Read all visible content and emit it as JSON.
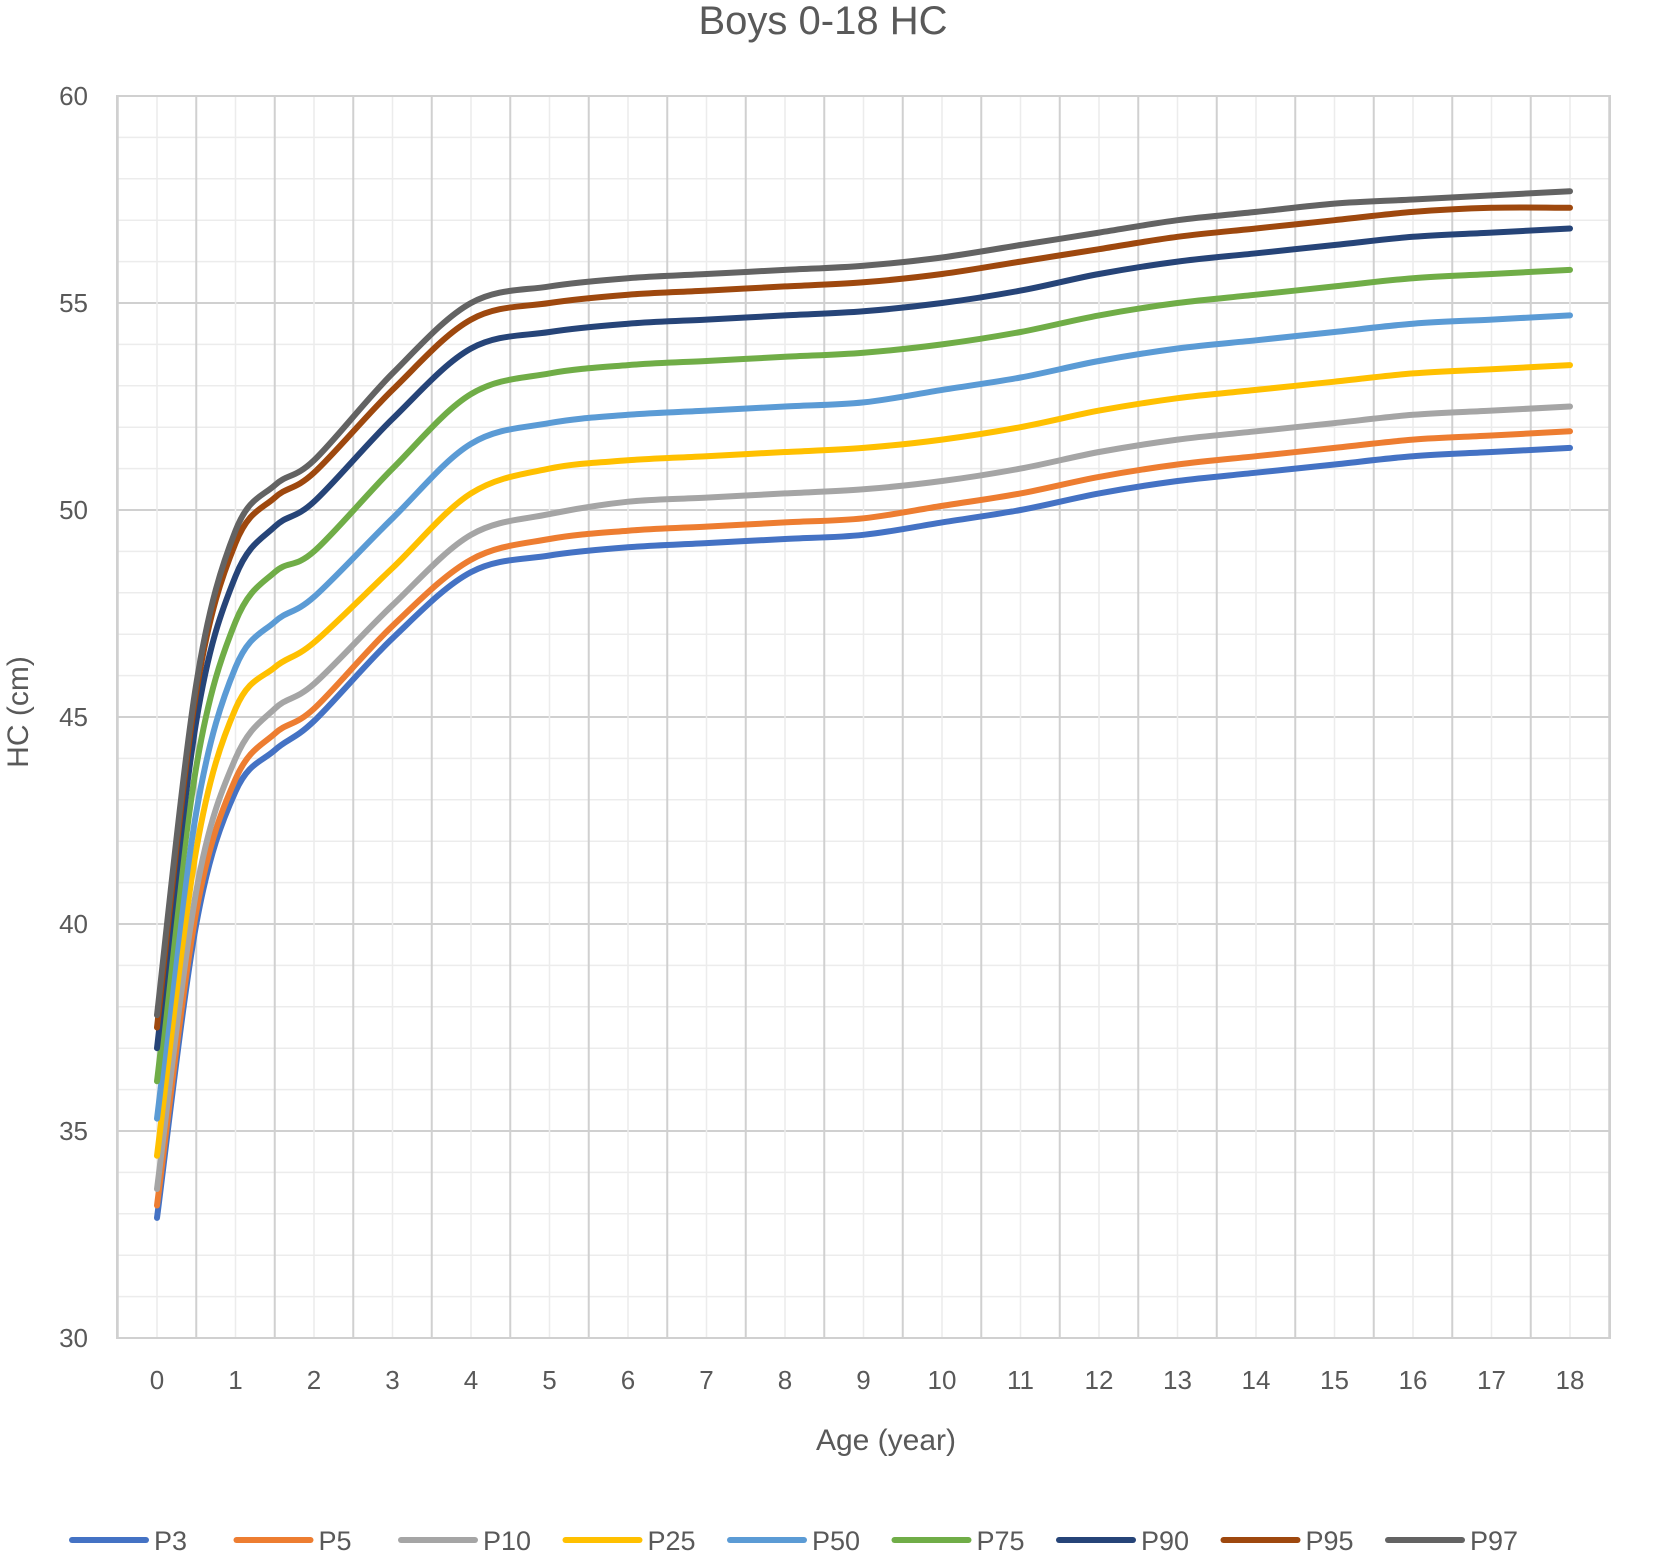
{
  "chart_data": {
    "type": "line",
    "title": "Boys 0-18 HC",
    "xlabel": "Age (year)",
    "ylabel": "HC (cm)",
    "xlim": [
      0,
      18
    ],
    "ylim": [
      30,
      60
    ],
    "xticks": [
      "0",
      "1",
      "2",
      "3",
      "4",
      "5",
      "6",
      "7",
      "8",
      "9",
      "10",
      "11",
      "12",
      "13",
      "14",
      "15",
      "16",
      "17",
      "18"
    ],
    "yticks": [
      "30",
      "35",
      "40",
      "45",
      "50",
      "55",
      "60"
    ],
    "grid": true,
    "minor_grid": true,
    "legend_position": "bottom",
    "x": [
      0,
      0.5,
      1,
      1.5,
      2,
      3,
      4,
      5,
      6,
      7,
      8,
      9,
      10,
      11,
      12,
      13,
      14,
      15,
      16,
      17,
      18
    ],
    "series": [
      {
        "name": "P3",
        "color": "#4472C4",
        "values": [
          32.9,
          40.0,
          43.2,
          44.2,
          44.9,
          46.9,
          48.5,
          48.9,
          49.1,
          49.2,
          49.3,
          49.4,
          49.7,
          50.0,
          50.4,
          50.7,
          50.9,
          51.1,
          51.3,
          51.4,
          51.5
        ]
      },
      {
        "name": "P5",
        "color": "#ED7D31",
        "values": [
          33.2,
          40.3,
          43.5,
          44.6,
          45.2,
          47.2,
          48.8,
          49.3,
          49.5,
          49.6,
          49.7,
          49.8,
          50.1,
          50.4,
          50.8,
          51.1,
          51.3,
          51.5,
          51.7,
          51.8,
          51.9
        ]
      },
      {
        "name": "P10",
        "color": "#A5A5A5",
        "values": [
          33.6,
          40.8,
          44.0,
          45.2,
          45.8,
          47.7,
          49.4,
          49.9,
          50.2,
          50.3,
          50.4,
          50.5,
          50.7,
          51.0,
          51.4,
          51.7,
          51.9,
          52.1,
          52.3,
          52.4,
          52.5
        ]
      },
      {
        "name": "P25",
        "color": "#FFC000",
        "values": [
          34.4,
          41.8,
          45.2,
          46.2,
          46.8,
          48.6,
          50.4,
          51.0,
          51.2,
          51.3,
          51.4,
          51.5,
          51.7,
          52.0,
          52.4,
          52.7,
          52.9,
          53.1,
          53.3,
          53.4,
          53.5
        ]
      },
      {
        "name": "P50",
        "color": "#5B9BD5",
        "values": [
          35.3,
          42.7,
          46.2,
          47.3,
          47.9,
          49.8,
          51.6,
          52.1,
          52.3,
          52.4,
          52.5,
          52.6,
          52.9,
          53.2,
          53.6,
          53.9,
          54.1,
          54.3,
          54.5,
          54.6,
          54.7
        ]
      },
      {
        "name": "P75",
        "color": "#70AD47",
        "values": [
          36.2,
          43.8,
          47.3,
          48.5,
          49.0,
          51.0,
          52.8,
          53.3,
          53.5,
          53.6,
          53.7,
          53.8,
          54.0,
          54.3,
          54.7,
          55.0,
          55.2,
          55.4,
          55.6,
          55.7,
          55.8
        ]
      },
      {
        "name": "P90",
        "color": "#264478",
        "values": [
          37.0,
          44.9,
          48.4,
          49.6,
          50.2,
          52.2,
          53.9,
          54.3,
          54.5,
          54.6,
          54.7,
          54.8,
          55.0,
          55.3,
          55.7,
          56.0,
          56.2,
          56.4,
          56.6,
          56.7,
          56.8
        ]
      },
      {
        "name": "P95",
        "color": "#9E480E",
        "values": [
          37.5,
          45.6,
          49.2,
          50.3,
          50.9,
          52.9,
          54.6,
          55.0,
          55.2,
          55.3,
          55.4,
          55.5,
          55.7,
          56.0,
          56.3,
          56.6,
          56.8,
          57.0,
          57.2,
          57.3,
          57.3
        ]
      },
      {
        "name": "P97",
        "color": "#636363",
        "values": [
          37.8,
          45.8,
          49.5,
          50.6,
          51.2,
          53.3,
          55.0,
          55.4,
          55.6,
          55.7,
          55.8,
          55.9,
          56.1,
          56.4,
          56.7,
          57.0,
          57.2,
          57.4,
          57.5,
          57.6,
          57.7
        ]
      }
    ]
  }
}
